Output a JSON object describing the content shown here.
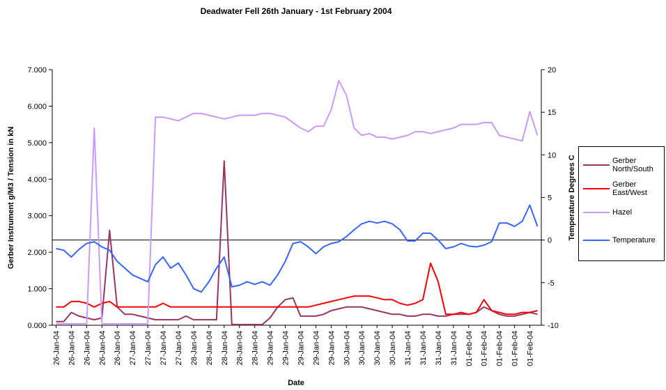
{
  "chart_data": {
    "type": "line",
    "title": "Deadwater Fell 26th January - 1st February 2004",
    "x_label": "Date",
    "y_label": "Gerber Instrument g/M3 / Tension in kN",
    "y2_label": "Temperature Degrees C",
    "categories": [
      "26-Jan-04",
      null,
      "26-Jan-04",
      null,
      "26-Jan-04",
      null,
      "26-Jan-04",
      null,
      "26-Jan-04",
      null,
      "27-Jan-04",
      null,
      "27-Jan-04",
      null,
      "27-Jan-04",
      null,
      "27-Jan-04",
      null,
      "28-Jan-04",
      null,
      "28-Jan-04",
      null,
      "28-Jan-04",
      null,
      "28-Jan-04",
      null,
      "28-Jan-04",
      null,
      "29-Jan-04",
      null,
      "29-Jan-04",
      null,
      "29-Jan-04",
      null,
      "29-Jan-04",
      null,
      "29-Jan-04",
      null,
      "30-Jan-04",
      null,
      "30-Jan-04",
      null,
      "30-Jan-04",
      null,
      "30-Jan-04",
      null,
      "31-Jan-04",
      null,
      "31-Jan-04",
      null,
      "31-Jan-04",
      null,
      "31-Jan-04",
      null,
      "01-Feb-04",
      null,
      "01-Feb-04",
      null,
      "01-Feb-04",
      null,
      "01-Feb-04",
      null,
      "01-Feb-04",
      null
    ],
    "series": [
      {
        "name": "Gerber North/South",
        "color": "#993366",
        "values": [
          0.1,
          0.1,
          0.35,
          0.25,
          0.2,
          0.15,
          0.2,
          2.6,
          0.5,
          0.3,
          0.3,
          0.25,
          0.2,
          0.15,
          0.15,
          0.15,
          0.15,
          0.25,
          0.15,
          0.15,
          0.15,
          0.15,
          4.5,
          0.02,
          0.02,
          0.02,
          0.02,
          0.02,
          0.2,
          0.5,
          0.7,
          0.75,
          0.25,
          0.25,
          0.25,
          0.3,
          0.4,
          0.45,
          0.5,
          0.5,
          0.5,
          0.45,
          0.4,
          0.35,
          0.3,
          0.3,
          0.25,
          0.25,
          0.3,
          0.3,
          0.25,
          0.25,
          0.3,
          0.3,
          0.3,
          0.35,
          0.5,
          0.4,
          0.3,
          0.25,
          0.25,
          0.3,
          0.35,
          0.3
        ]
      },
      {
        "name": "Gerber East/West",
        "color": "#ff0000",
        "values": [
          0.5,
          0.5,
          0.65,
          0.65,
          0.6,
          0.5,
          0.6,
          0.65,
          0.5,
          0.5,
          0.5,
          0.5,
          0.5,
          0.5,
          0.6,
          0.5,
          0.5,
          0.5,
          0.5,
          0.5,
          0.5,
          0.5,
          0.5,
          0.5,
          0.5,
          0.5,
          0.5,
          0.5,
          0.5,
          0.5,
          0.5,
          0.5,
          0.5,
          0.5,
          0.55,
          0.6,
          0.65,
          0.7,
          0.75,
          0.8,
          0.8,
          0.8,
          0.75,
          0.7,
          0.7,
          0.6,
          0.55,
          0.6,
          0.7,
          1.7,
          1.2,
          0.3,
          0.3,
          0.35,
          0.3,
          0.35,
          0.7,
          0.4,
          0.35,
          0.3,
          0.3,
          0.35,
          0.35,
          0.4
        ]
      },
      {
        "name": "Hazel",
        "color": "#cc99ff",
        "values": [
          0.04,
          0.04,
          0.04,
          0.04,
          0.04,
          5.4,
          0.04,
          0.04,
          0.04,
          0.04,
          0.04,
          0.04,
          0.04,
          5.7,
          5.7,
          5.65,
          5.6,
          5.7,
          5.8,
          5.8,
          5.75,
          5.7,
          5.65,
          5.7,
          5.75,
          5.75,
          5.75,
          5.8,
          5.8,
          5.75,
          5.7,
          5.55,
          5.4,
          5.3,
          5.45,
          5.45,
          5.9,
          6.7,
          6.3,
          5.4,
          5.2,
          5.25,
          5.15,
          5.15,
          5.1,
          5.15,
          5.2,
          5.3,
          5.3,
          5.25,
          5.3,
          5.35,
          5.4,
          5.5,
          5.5,
          5.5,
          5.55,
          5.55,
          5.2,
          5.15,
          5.1,
          5.05,
          5.85,
          5.2
        ]
      },
      {
        "name": "Temperature",
        "color": "#3366ff",
        "axis": "y2",
        "values": [
          -1.0,
          -1.2,
          -2.0,
          -1.1,
          -0.4,
          -0.2,
          -0.8,
          -1.2,
          -2.5,
          -3.3,
          -4.1,
          -4.5,
          -4.9,
          -2.9,
          -2.0,
          -3.3,
          -2.7,
          -4.1,
          -5.7,
          -6.1,
          -4.9,
          -3.3,
          -2.0,
          -5.5,
          -5.3,
          -4.9,
          -5.2,
          -4.9,
          -5.3,
          -4.1,
          -2.5,
          -0.4,
          -0.2,
          -0.8,
          -1.6,
          -0.8,
          -0.4,
          -0.2,
          0.4,
          1.2,
          1.9,
          2.2,
          2.0,
          2.2,
          1.9,
          1.2,
          -0.1,
          -0.1,
          0.8,
          0.8,
          0,
          -1.0,
          -0.8,
          -0.4,
          -0.7,
          -0.8,
          -0.6,
          -0.2,
          2.0,
          2.0,
          1.6,
          2.2,
          4.1,
          1.6
        ]
      }
    ],
    "ylim": [
      0,
      7
    ],
    "yticks": [
      {
        "value": 0,
        "label": "0.000"
      },
      {
        "value": 1,
        "label": "1.000"
      },
      {
        "value": 2,
        "label": "2.000"
      },
      {
        "value": 3,
        "label": "3.000"
      },
      {
        "value": 4,
        "label": "4.000"
      },
      {
        "value": 5,
        "label": "5.000"
      },
      {
        "value": 6,
        "label": "6.000"
      },
      {
        "value": 7,
        "label": "7.000"
      }
    ],
    "y2lim": [
      -10,
      20
    ],
    "y2ticks": [
      -10,
      -5,
      0,
      5,
      10,
      15,
      20
    ],
    "legend": "right"
  }
}
